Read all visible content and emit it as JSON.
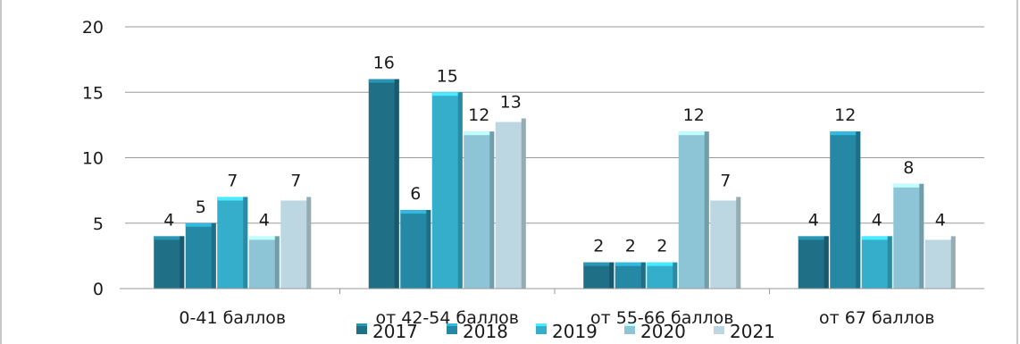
{
  "chart_data": {
    "type": "bar",
    "categories": [
      "0-41  баллов",
      "от 42-54 баллов",
      "от 55-66 баллов",
      "от 67 баллов"
    ],
    "series": [
      {
        "name": "2017",
        "values": [
          4,
          16,
          2,
          4
        ],
        "color": "#1f6f86"
      },
      {
        "name": "2018",
        "values": [
          5,
          6,
          2,
          12
        ],
        "color": "#2589a6"
      },
      {
        "name": "2019",
        "values": [
          7,
          15,
          2,
          4
        ],
        "color": "#35aecb"
      },
      {
        "name": "2020",
        "values": [
          4,
          12,
          12,
          8
        ],
        "color": "#8ec5d6"
      },
      {
        "name": "2021",
        "values": [
          7,
          13,
          7,
          4
        ],
        "color": "#bcd7e1"
      }
    ],
    "yticks": [
      0,
      5,
      10,
      15,
      20
    ],
    "ylim": [
      0,
      20
    ],
    "grid": true,
    "legend_position": "bottom"
  }
}
